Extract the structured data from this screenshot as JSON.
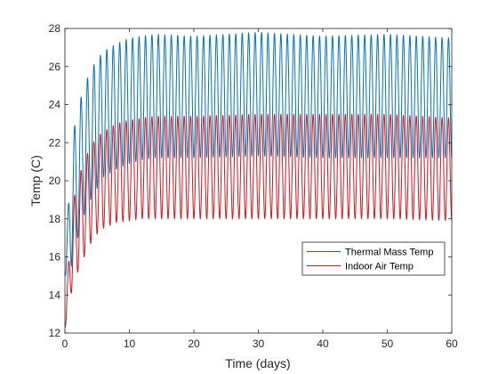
{
  "chart_data": {
    "type": "line",
    "title": "",
    "xlabel": "Time (days)",
    "ylabel": "Temp (C)",
    "xlim": [
      0,
      60
    ],
    "ylim": [
      12,
      28
    ],
    "xticks": [
      0,
      10,
      20,
      30,
      40,
      50,
      60
    ],
    "yticks": [
      12,
      14,
      16,
      18,
      20,
      22,
      24,
      26,
      28
    ],
    "grid": false,
    "legend_position": "lower-right",
    "series": [
      {
        "name": "Thermal Mass Temp",
        "color": "#0072BD",
        "period_days": 1,
        "start_value": 15.0,
        "envelope_days": [
          0,
          1,
          2,
          3,
          4,
          5,
          6,
          8,
          10,
          12,
          14,
          20,
          30,
          40,
          50,
          60
        ],
        "daily_max": [
          15.0,
          22.0,
          23.8,
          25.0,
          25.8,
          26.4,
          26.8,
          27.2,
          27.5,
          27.6,
          27.7,
          27.6,
          27.8,
          27.6,
          27.7,
          27.5
        ],
        "daily_min": [
          15.0,
          15.5,
          17.0,
          18.2,
          19.0,
          19.6,
          20.2,
          20.6,
          20.9,
          21.1,
          21.2,
          21.2,
          21.3,
          21.2,
          21.2,
          21.2
        ]
      },
      {
        "name": "Indoor Air Temp",
        "color": "#D9141B",
        "period_days": 1,
        "start_value": 12.3,
        "envelope_days": [
          0,
          1,
          2,
          3,
          4,
          5,
          6,
          8,
          10,
          12,
          14,
          20,
          30,
          40,
          50,
          60
        ],
        "daily_max": [
          12.3,
          18.5,
          20.0,
          21.1,
          21.8,
          22.3,
          22.6,
          23.0,
          23.2,
          23.3,
          23.4,
          23.4,
          23.5,
          23.5,
          23.5,
          23.3
        ],
        "daily_min": [
          12.3,
          14.1,
          15.2,
          16.0,
          16.7,
          17.2,
          17.5,
          17.8,
          17.9,
          18.0,
          18.0,
          18.0,
          18.0,
          18.0,
          18.0,
          17.9
        ]
      }
    ]
  }
}
